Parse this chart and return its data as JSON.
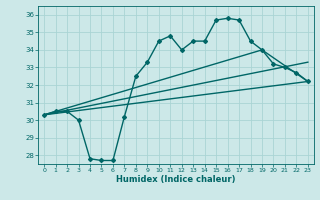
{
  "xlabel": "Humidex (Indice chaleur)",
  "xlim": [
    -0.5,
    23.5
  ],
  "ylim": [
    27.5,
    36.5
  ],
  "yticks": [
    28,
    29,
    30,
    31,
    32,
    33,
    34,
    35,
    36
  ],
  "xticks": [
    0,
    1,
    2,
    3,
    4,
    5,
    6,
    7,
    8,
    9,
    10,
    11,
    12,
    13,
    14,
    15,
    16,
    17,
    18,
    19,
    20,
    21,
    22,
    23
  ],
  "bg_color": "#cce8e8",
  "grid_color": "#aad4d4",
  "line_color": "#006666",
  "lines": [
    {
      "x": [
        0,
        1,
        2,
        3,
        4,
        5,
        6,
        7,
        8,
        9,
        10,
        11,
        12,
        13,
        14,
        15,
        16,
        17,
        18,
        19,
        20,
        21,
        22,
        23
      ],
      "y": [
        30.3,
        30.5,
        30.5,
        30.0,
        27.8,
        27.7,
        27.7,
        30.2,
        32.5,
        33.3,
        34.5,
        34.8,
        34.0,
        34.5,
        34.5,
        35.7,
        35.8,
        35.7,
        34.5,
        34.0,
        33.2,
        33.0,
        32.7,
        32.2
      ],
      "marker": "D",
      "markersize": 2.0,
      "linewidth": 1.0
    },
    {
      "x": [
        0,
        23
      ],
      "y": [
        30.3,
        33.3
      ],
      "marker": null,
      "linewidth": 1.0
    },
    {
      "x": [
        0,
        23
      ],
      "y": [
        30.3,
        32.2
      ],
      "marker": null,
      "linewidth": 1.0
    },
    {
      "x": [
        0,
        19,
        23
      ],
      "y": [
        30.3,
        34.0,
        32.2
      ],
      "marker": null,
      "linewidth": 1.0
    }
  ]
}
